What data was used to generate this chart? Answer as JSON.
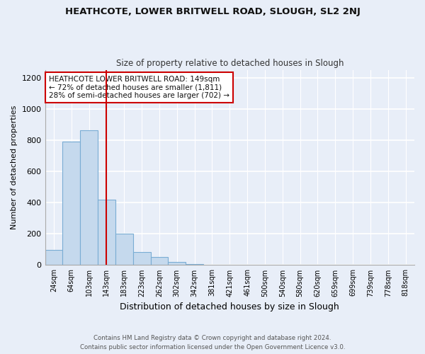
{
  "title1": "HEATHCOTE, LOWER BRITWELL ROAD, SLOUGH, SL2 2NJ",
  "title2": "Size of property relative to detached houses in Slough",
  "xlabel": "Distribution of detached houses by size in Slough",
  "ylabel": "Number of detached properties",
  "bar_labels": [
    "24sqm",
    "64sqm",
    "103sqm",
    "143sqm",
    "183sqm",
    "223sqm",
    "262sqm",
    "302sqm",
    "342sqm",
    "381sqm",
    "421sqm",
    "461sqm",
    "500sqm",
    "540sqm",
    "580sqm",
    "620sqm",
    "659sqm",
    "699sqm",
    "739sqm",
    "778sqm",
    "818sqm"
  ],
  "bar_values": [
    95,
    790,
    865,
    420,
    200,
    85,
    50,
    20,
    5,
    2,
    0,
    0,
    3,
    3,
    0,
    3,
    0,
    0,
    0,
    0,
    0
  ],
  "bar_color": "#c5d9ed",
  "bar_edge_color": "#7aadd4",
  "vline_x": 3.5,
  "vline_color": "#cc0000",
  "annotation_title": "HEATHCOTE LOWER BRITWELL ROAD: 149sqm",
  "annotation_line1": "← 72% of detached houses are smaller (1,811)",
  "annotation_line2": "28% of semi-detached houses are larger (702) →",
  "annotation_box_color": "#ffffff",
  "annotation_box_edge": "#cc0000",
  "ylim": [
    0,
    1250
  ],
  "yticks": [
    0,
    200,
    400,
    600,
    800,
    1000,
    1200
  ],
  "footnote1": "Contains HM Land Registry data © Crown copyright and database right 2024.",
  "footnote2": "Contains public sector information licensed under the Open Government Licence v3.0.",
  "bg_color": "#e8eef8"
}
